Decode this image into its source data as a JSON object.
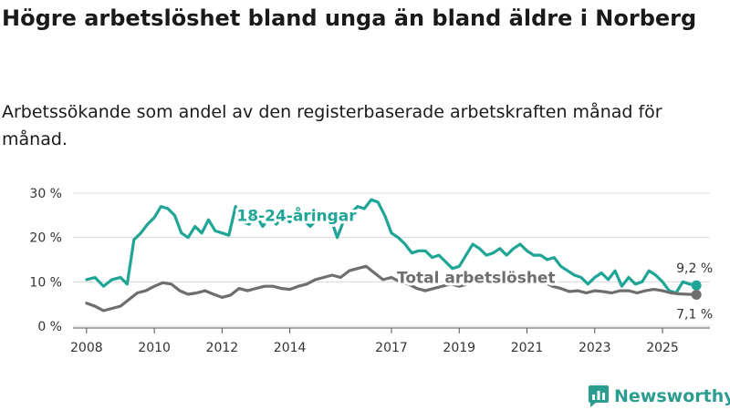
{
  "title": "Högre arbetslöshet bland unga än bland äldre i Norberg",
  "subtitle": "Arbetssökande som andel av den registerbaserade arbetskraften månad för månad.",
  "brand": {
    "name": "Newsworthy",
    "icon": "newsworthy-logo-icon"
  },
  "colors": {
    "youth": "#1fa596",
    "total": "#6e6e6e",
    "grid": "#d9d9d9",
    "text": "#333333",
    "brand": "#2a9d8f"
  },
  "chart_data": {
    "type": "line",
    "title": "Högre arbetslöshet bland unga än bland äldre i Norberg",
    "xlabel": "",
    "ylabel": "",
    "xlim": [
      2007.6,
      2026.4
    ],
    "ylim": [
      0,
      30
    ],
    "x_ticks": [
      2008,
      2010,
      2012,
      2014,
      2017,
      2019,
      2021,
      2023,
      2025
    ],
    "x_tick_labels": [
      "2008",
      "2010",
      "2012",
      "2014",
      "2017",
      "2019",
      "2021",
      "2023",
      "2025"
    ],
    "y_ticks": [
      0,
      10,
      20,
      30
    ],
    "y_tick_labels": [
      "0 %",
      "10 %",
      "20 %",
      "30 %"
    ],
    "grid": true,
    "series": [
      {
        "name": "18-24-åringar",
        "label": "18-24-åringar",
        "color": "#1fa596",
        "points": [
          [
            2008.0,
            10.5
          ],
          [
            2008.25,
            11
          ],
          [
            2008.5,
            9
          ],
          [
            2008.75,
            10.5
          ],
          [
            2009.0,
            11
          ],
          [
            2009.2,
            9.5
          ],
          [
            2009.4,
            19.5
          ],
          [
            2009.6,
            21
          ],
          [
            2009.8,
            23
          ],
          [
            2010.0,
            24.5
          ],
          [
            2010.2,
            27
          ],
          [
            2010.4,
            26.5
          ],
          [
            2010.6,
            25
          ],
          [
            2010.8,
            21
          ],
          [
            2011.0,
            20
          ],
          [
            2011.2,
            22.5
          ],
          [
            2011.4,
            21
          ],
          [
            2011.6,
            24
          ],
          [
            2011.8,
            21.5
          ],
          [
            2012.0,
            21
          ],
          [
            2012.2,
            20.5
          ],
          [
            2012.4,
            27
          ],
          [
            2012.6,
            23.5
          ],
          [
            2012.8,
            23
          ],
          [
            2013.0,
            25
          ],
          [
            2013.2,
            22.5
          ],
          [
            2013.4,
            24.5
          ],
          [
            2013.6,
            23
          ],
          [
            2013.8,
            25
          ],
          [
            2014.0,
            23.5
          ],
          [
            2014.2,
            25
          ],
          [
            2014.4,
            24
          ],
          [
            2014.6,
            22.5
          ],
          [
            2014.8,
            24
          ],
          [
            2015.0,
            23.5
          ],
          [
            2015.2,
            24.5
          ],
          [
            2015.4,
            20
          ],
          [
            2015.6,
            24
          ],
          [
            2015.8,
            25.5
          ],
          [
            2016.0,
            27
          ],
          [
            2016.2,
            26.5
          ],
          [
            2016.4,
            28.5
          ],
          [
            2016.6,
            28
          ],
          [
            2016.8,
            25
          ],
          [
            2017.0,
            21
          ],
          [
            2017.2,
            20
          ],
          [
            2017.4,
            18.5
          ],
          [
            2017.6,
            16.5
          ],
          [
            2017.8,
            17
          ],
          [
            2018.0,
            17
          ],
          [
            2018.2,
            15.5
          ],
          [
            2018.4,
            16
          ],
          [
            2018.6,
            14.5
          ],
          [
            2018.8,
            13
          ],
          [
            2019.0,
            13.5
          ],
          [
            2019.2,
            16
          ],
          [
            2019.4,
            18.5
          ],
          [
            2019.6,
            17.5
          ],
          [
            2019.8,
            16
          ],
          [
            2020.0,
            16.5
          ],
          [
            2020.2,
            17.5
          ],
          [
            2020.4,
            16
          ],
          [
            2020.6,
            17.5
          ],
          [
            2020.8,
            18.5
          ],
          [
            2021.0,
            17
          ],
          [
            2021.2,
            16
          ],
          [
            2021.4,
            16
          ],
          [
            2021.6,
            15
          ],
          [
            2021.8,
            15.5
          ],
          [
            2022.0,
            13.5
          ],
          [
            2022.2,
            12.5
          ],
          [
            2022.4,
            11.5
          ],
          [
            2022.6,
            11
          ],
          [
            2022.8,
            9.5
          ],
          [
            2023.0,
            11
          ],
          [
            2023.2,
            12
          ],
          [
            2023.4,
            10.5
          ],
          [
            2023.6,
            12.5
          ],
          [
            2023.8,
            9
          ],
          [
            2024.0,
            11
          ],
          [
            2024.2,
            9.5
          ],
          [
            2024.4,
            10
          ],
          [
            2024.6,
            12.5
          ],
          [
            2024.8,
            11.5
          ],
          [
            2025.0,
            10
          ],
          [
            2025.2,
            8
          ],
          [
            2025.4,
            7.5
          ],
          [
            2025.6,
            10
          ],
          [
            2025.8,
            9.5
          ],
          [
            2026.0,
            9.2
          ]
        ],
        "end_value_label": "9,2 %"
      },
      {
        "name": "Total arbetslöshet",
        "label": "Total arbetslöshet",
        "color": "#6e6e6e",
        "points": [
          [
            2008.0,
            5.2
          ],
          [
            2008.25,
            4.5
          ],
          [
            2008.5,
            3.5
          ],
          [
            2008.75,
            4
          ],
          [
            2009.0,
            4.5
          ],
          [
            2009.25,
            6
          ],
          [
            2009.5,
            7.5
          ],
          [
            2009.75,
            8
          ],
          [
            2010.0,
            9
          ],
          [
            2010.25,
            9.8
          ],
          [
            2010.5,
            9.5
          ],
          [
            2010.75,
            8
          ],
          [
            2011.0,
            7.2
          ],
          [
            2011.25,
            7.5
          ],
          [
            2011.5,
            8
          ],
          [
            2011.75,
            7.2
          ],
          [
            2012.0,
            6.5
          ],
          [
            2012.25,
            7
          ],
          [
            2012.5,
            8.5
          ],
          [
            2012.75,
            8
          ],
          [
            2013.0,
            8.5
          ],
          [
            2013.25,
            9
          ],
          [
            2013.5,
            9
          ],
          [
            2013.75,
            8.5
          ],
          [
            2014.0,
            8.3
          ],
          [
            2014.25,
            9
          ],
          [
            2014.5,
            9.5
          ],
          [
            2014.75,
            10.5
          ],
          [
            2015.0,
            11
          ],
          [
            2015.25,
            11.5
          ],
          [
            2015.5,
            11
          ],
          [
            2015.75,
            12.5
          ],
          [
            2016.0,
            13
          ],
          [
            2016.25,
            13.5
          ],
          [
            2016.5,
            12
          ],
          [
            2016.75,
            10.5
          ],
          [
            2017.0,
            11
          ],
          [
            2017.25,
            10
          ],
          [
            2017.5,
            9.5
          ],
          [
            2017.75,
            8.5
          ],
          [
            2018.0,
            8
          ],
          [
            2018.25,
            8.5
          ],
          [
            2018.5,
            9
          ],
          [
            2018.75,
            9.5
          ],
          [
            2019.0,
            9
          ],
          [
            2019.25,
            9.5
          ],
          [
            2019.5,
            10
          ],
          [
            2019.75,
            10
          ],
          [
            2020.0,
            10.5
          ],
          [
            2020.25,
            11
          ],
          [
            2020.5,
            10.5
          ],
          [
            2020.75,
            11
          ],
          [
            2021.0,
            10.5
          ],
          [
            2021.25,
            10
          ],
          [
            2021.5,
            10
          ],
          [
            2021.75,
            9
          ],
          [
            2022.0,
            8.5
          ],
          [
            2022.25,
            7.8
          ],
          [
            2022.5,
            8
          ],
          [
            2022.75,
            7.5
          ],
          [
            2023.0,
            8
          ],
          [
            2023.25,
            7.8
          ],
          [
            2023.5,
            7.5
          ],
          [
            2023.75,
            8
          ],
          [
            2024.0,
            8
          ],
          [
            2024.25,
            7.5
          ],
          [
            2024.5,
            8
          ],
          [
            2024.75,
            8.3
          ],
          [
            2025.0,
            8
          ],
          [
            2025.25,
            7.5
          ],
          [
            2025.5,
            7.3
          ],
          [
            2025.75,
            7.2
          ],
          [
            2026.0,
            7.1
          ]
        ],
        "end_value_label": "7,1 %"
      }
    ],
    "annotations": [
      {
        "text": "18-24-åringar",
        "series": "18-24-åringar",
        "x": 2014.2,
        "y": 25,
        "placement": "inline-label-on-line"
      },
      {
        "text": "Total arbetslöshet",
        "series": "Total arbetslöshet",
        "x": 2019.5,
        "y": 11,
        "placement": "inline-label-on-line"
      }
    ]
  }
}
